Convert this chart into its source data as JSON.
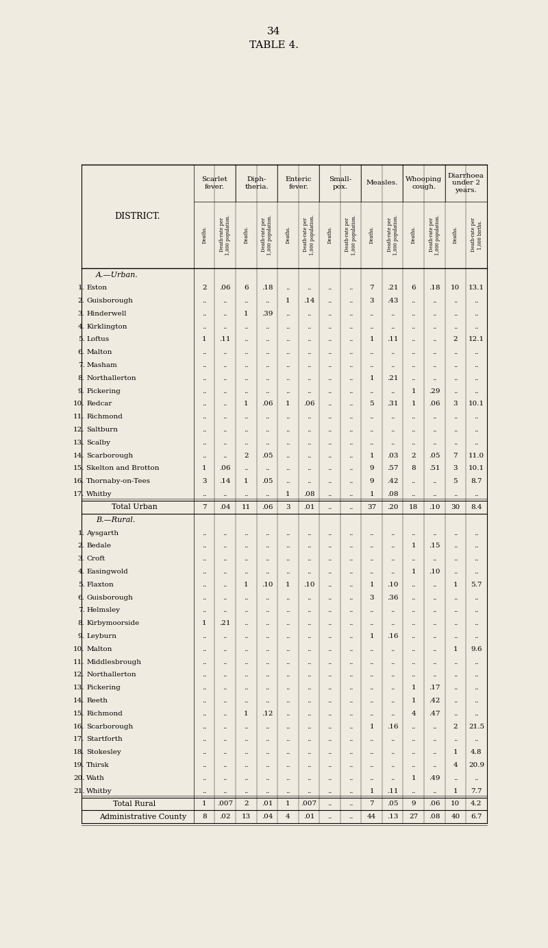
{
  "page_number": "34",
  "title": "TABLE 4.",
  "bg_color": "#f0ebe0",
  "col_groups": [
    "Scarlet\nfever.",
    "Diph-\ntheria.",
    "Enteric\nfever.",
    "Small-\npox.",
    "Measles.",
    "Whooping\ncough.",
    "Diarrhoea\nunder 2\nyears."
  ],
  "urban_rows": [
    [
      "1.",
      "Eston",
      "2",
      ".06",
      "6",
      ".18",
      "..",
      "..",
      "..",
      "..",
      "7",
      ".21",
      "6",
      ".18",
      "10",
      "13.1"
    ],
    [
      "2.",
      "Guisborough",
      "..",
      "..",
      "..",
      "..",
      "1",
      ".14",
      "..",
      "..",
      "3",
      ".43",
      "..",
      "..",
      "..",
      ".."
    ],
    [
      "3.",
      "Hinderwell",
      "..",
      "..",
      "1",
      ".39",
      "..",
      "..",
      "..",
      "..",
      "..",
      "..",
      "..",
      "..",
      "..",
      ".."
    ],
    [
      "4.",
      "Kirklington",
      "..",
      "..",
      "..",
      "..",
      "..",
      "..",
      "..",
      "..",
      "..",
      "..",
      "..",
      "..",
      "..",
      ".."
    ],
    [
      "5.",
      "Loftus",
      "1",
      ".11",
      "..",
      "..",
      "..",
      "..",
      "..",
      "..",
      "1",
      ".11",
      "..",
      "..",
      "2",
      "12.1"
    ],
    [
      "6.",
      "Malton",
      "..",
      "..",
      "..",
      "..",
      "..",
      "..",
      "..",
      "..",
      "..",
      "..",
      "..",
      "..",
      "..",
      ".."
    ],
    [
      "7.",
      "Masham",
      "..",
      "..",
      "..",
      "..",
      "..",
      "..",
      "..",
      "..",
      "..",
      "..",
      "..",
      "..",
      "..",
      ".."
    ],
    [
      "8.",
      "Northallerton",
      "..",
      "..",
      "..",
      "..",
      "..",
      "..",
      "..",
      "..",
      "1",
      ".21",
      "..",
      "..",
      "..",
      ".."
    ],
    [
      "9.",
      "Pickering",
      "..",
      "..",
      "..",
      "..",
      "..",
      "..",
      "..",
      "..",
      "..",
      "..",
      "1",
      ".29",
      "..",
      ".."
    ],
    [
      "10.",
      "Redcar",
      "..",
      "..",
      "1",
      ".06",
      "1",
      ".06",
      "..",
      "..",
      "5",
      ".31",
      "1",
      ".06",
      "3",
      "10.1"
    ],
    [
      "11.",
      "Richmond",
      "..",
      "..",
      "..",
      "..",
      "..",
      "..",
      "..",
      "..",
      "..",
      "..",
      "..",
      "..",
      "..",
      ".."
    ],
    [
      "12.",
      "Saltburn",
      "..",
      "..",
      "..",
      "..",
      "..",
      "..",
      "..",
      "..",
      "..",
      "..",
      "..",
      "..",
      "..",
      ".."
    ],
    [
      "13.",
      "Scalby",
      "..",
      "..",
      "..",
      "..",
      "..",
      "..",
      "..",
      "..",
      "..",
      "..",
      "..",
      "..",
      "..",
      ".."
    ],
    [
      "14.",
      "Scarborough",
      "..",
      "..",
      "2",
      ".05",
      "..",
      "..",
      "..",
      "..",
      "1",
      ".03",
      "2",
      ".05",
      "7",
      "11.0"
    ],
    [
      "15.",
      "Skelton and Brotton",
      "1",
      ".06",
      "..",
      "..",
      "..",
      "..",
      "..",
      "..",
      "9",
      ".57",
      "8",
      ".51",
      "3",
      "10.1"
    ],
    [
      "16.",
      "Thornaby-on-Tees",
      "3",
      ".14",
      "1",
      ".05",
      "..",
      "..",
      "..",
      "..",
      "9",
      ".42",
      "..",
      "..",
      "5",
      "8.7"
    ],
    [
      "17.",
      "Whitby",
      "..",
      "..",
      "..",
      "..",
      "1",
      ".08",
      "..",
      "..",
      "1",
      ".08",
      "..",
      "..",
      "..",
      ".."
    ]
  ],
  "urban_total": [
    "Total Urban",
    "7",
    ".04",
    "11",
    ".06",
    "3",
    ".01",
    "..",
    "..",
    "37",
    ".20",
    "18",
    ".10",
    "30",
    "8.4"
  ],
  "rural_rows": [
    [
      "1.",
      "Aysgarth",
      "..",
      "..",
      "..",
      "..",
      "..",
      "..",
      "..",
      "..",
      "..",
      "..",
      "..",
      "..",
      "..",
      ".."
    ],
    [
      "2.",
      "Bedale",
      "..",
      "..",
      "..",
      "..",
      "..",
      "..",
      "..",
      "..",
      "..",
      "..",
      "1",
      ".15",
      "..",
      ".."
    ],
    [
      "3.",
      "Croft",
      "..",
      "..",
      "..",
      "..",
      "..",
      "..",
      "..",
      "..",
      "..",
      "..",
      "..",
      "..",
      "..",
      ".."
    ],
    [
      "4.",
      "Easingwold",
      "..",
      "..",
      "..",
      "..",
      "..",
      "..",
      "..",
      "..",
      "..",
      "..",
      "1",
      ".10",
      "..",
      ".."
    ],
    [
      "5.",
      "Flaxton",
      "..",
      "..",
      "1",
      ".10",
      "1",
      ".10",
      "..",
      "..",
      "1",
      ".10",
      "..",
      "..",
      "1",
      "5.7"
    ],
    [
      "6.",
      "Guisborough",
      "..",
      "..",
      "..",
      "..",
      "..",
      "..",
      "..",
      "..",
      "3",
      ".36",
      "..",
      "..",
      "..",
      ".."
    ],
    [
      "7.",
      "Helmsley",
      "..",
      "..",
      "..",
      "..",
      "..",
      "..",
      "..",
      "..",
      "..",
      "..",
      "..",
      "..",
      "..",
      ".."
    ],
    [
      "8.",
      "Kirbymoorside",
      "1",
      ".21",
      "..",
      "..",
      "..",
      "..",
      "..",
      "..",
      "..",
      "..",
      "..",
      "..",
      "..",
      ".."
    ],
    [
      "9.",
      "Leyburn",
      "..",
      "..",
      "..",
      "..",
      "..",
      "..",
      "..",
      "..",
      "1",
      ".16",
      "..",
      "..",
      "..",
      ".."
    ],
    [
      "10.",
      "Malton",
      "..",
      "..",
      "..",
      "..",
      "..",
      "..",
      "..",
      "..",
      "..",
      "..",
      "..",
      "..",
      "1",
      "9.6"
    ],
    [
      "11.",
      "Middlesbrough",
      "..",
      "..",
      "..",
      "..",
      "..",
      "..",
      "..",
      "..",
      "..",
      "..",
      "..",
      "..",
      "..",
      ".."
    ],
    [
      "12.",
      "Northallerton",
      "..",
      "..",
      "..",
      "..",
      "..",
      "..",
      "..",
      "..",
      "..",
      "..",
      "..",
      "..",
      "..",
      ".."
    ],
    [
      "13.",
      "Pickering",
      "..",
      "..",
      "..",
      "..",
      "..",
      "..",
      "..",
      "..",
      "..",
      "..",
      "1",
      ".17",
      "..",
      ".."
    ],
    [
      "14.",
      "Reeth",
      "..",
      "..",
      "..",
      "..",
      "..",
      "..",
      "..",
      "..",
      "..",
      "..",
      "1",
      ".42",
      "..",
      ".."
    ],
    [
      "15.",
      "Richmond",
      "..",
      "..",
      "1",
      ".12",
      "..",
      "..",
      "..",
      "..",
      "..",
      "..",
      "4",
      ".47",
      "..",
      ".."
    ],
    [
      "16.",
      "Scarborough",
      "..",
      "..",
      "..",
      "..",
      "..",
      "..",
      "..",
      "..",
      "1",
      ".16",
      "..",
      "..",
      "2",
      "21.5"
    ],
    [
      "17.",
      "Startforth",
      "..",
      "..",
      "..",
      "..",
      "..",
      "..",
      "..",
      "..",
      "..",
      "..",
      "..",
      "..",
      "..",
      ".."
    ],
    [
      "18.",
      "Stokesley",
      "..",
      "..",
      "..",
      "..",
      "..",
      "..",
      "..",
      "..",
      "..",
      "..",
      "..",
      "..",
      "1",
      "4.8"
    ],
    [
      "19.",
      "Thirsk",
      "..",
      "..",
      "..",
      "..",
      "..",
      "..",
      "..",
      "..",
      "..",
      "..",
      "..",
      "..",
      "4",
      "20.9"
    ],
    [
      "20.",
      "Wath",
      "..",
      "..",
      "..",
      "..",
      "..",
      "..",
      "..",
      "..",
      "..",
      "..",
      "1",
      ".49",
      "..",
      ".."
    ],
    [
      "21.",
      "Whitby",
      "..",
      "..",
      "..",
      "..",
      "..",
      "..",
      "..",
      "..",
      "1",
      ".11",
      "..",
      "..",
      "1",
      "7.7"
    ]
  ],
  "rural_total": [
    "Total Rural",
    "1",
    ".007",
    "2",
    ".01",
    "1",
    ".007",
    "..",
    "..",
    "7",
    ".05",
    "9",
    ".06",
    "10",
    "4.2"
  ],
  "admin_total": [
    "Administrative County",
    "8",
    ".02",
    "13",
    ".04",
    "4",
    ".01",
    "..",
    "..",
    "44",
    ".13",
    "27",
    ".08",
    "40",
    "6.7"
  ]
}
